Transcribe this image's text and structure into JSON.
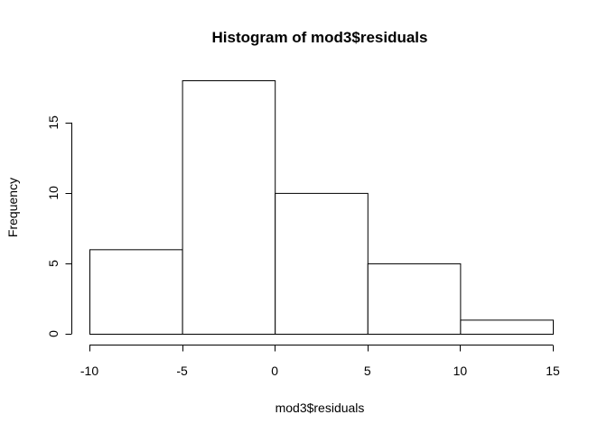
{
  "chart_data": {
    "type": "bar",
    "title": "Histogram of mod3$residuals",
    "xlabel": "mod3$residuals",
    "ylabel": "Frequency",
    "bins": [
      {
        "x0": -10,
        "x1": -5,
        "count": 6
      },
      {
        "x0": -5,
        "x1": 0,
        "count": 18
      },
      {
        "x0": 0,
        "x1": 5,
        "count": 10
      },
      {
        "x0": 5,
        "x1": 10,
        "count": 5
      },
      {
        "x0": 10,
        "x1": 15,
        "count": 1
      }
    ],
    "xlim": [
      -10,
      15
    ],
    "ylim": [
      0,
      18
    ],
    "xticks": [
      -10,
      -5,
      0,
      5,
      10,
      15
    ],
    "yticks": [
      0,
      5,
      10,
      15
    ],
    "xtick_labels": [
      "-10",
      "-5",
      "0",
      "5",
      "10",
      "15"
    ],
    "ytick_labels": [
      "0",
      "5",
      "10",
      "15"
    ],
    "grid": false,
    "legend": "none"
  }
}
